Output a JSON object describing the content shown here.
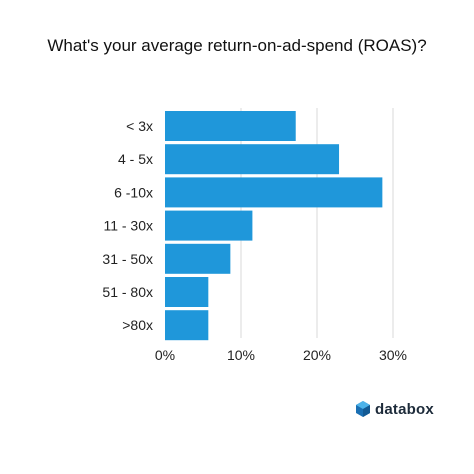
{
  "colors": {
    "bar": "#1f97da",
    "grid": "#d9d9d9",
    "logo_dark": "#1a6fb3",
    "logo_light": "#4db3ea"
  },
  "logo": {
    "text": "databox",
    "icon": "databox-hexagon-icon"
  },
  "chart_data": {
    "type": "bar",
    "orientation": "horizontal",
    "title": "What's your average return-on-ad-spend (ROAS)?",
    "xlabel": "",
    "ylabel": "",
    "categories": [
      "< 3x",
      "4 - 5x",
      "6 -10x",
      "11 - 30x",
      "31 - 50x",
      "51 - 80x",
      ">80x"
    ],
    "values": [
      17.2,
      22.9,
      28.6,
      11.5,
      8.6,
      5.7,
      5.7
    ],
    "unit": "%",
    "xlim": [
      0,
      30
    ],
    "xticks": [
      0,
      10,
      20,
      30
    ],
    "xtick_labels": [
      "0%",
      "10%",
      "20%",
      "30%"
    ],
    "grid": true,
    "legend": "none"
  }
}
